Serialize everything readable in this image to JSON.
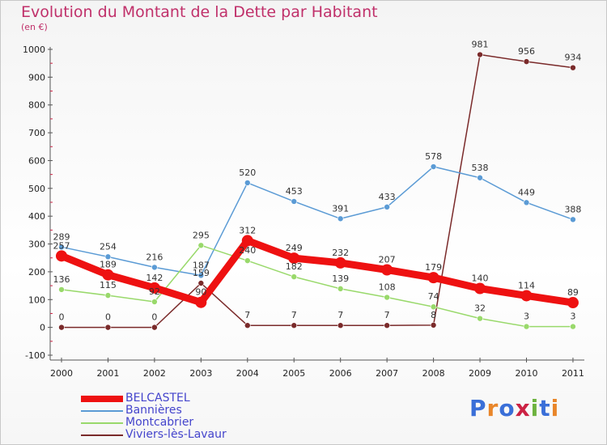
{
  "title": "Evolution du Montant de la Dette par Habitant",
  "subtitle": "(en €)",
  "logo": "Proxiti",
  "chart_data": {
    "type": "line",
    "x": [
      "2000",
      "2001",
      "2002",
      "2003",
      "2004",
      "2005",
      "2006",
      "2007",
      "2008",
      "2009",
      "2010",
      "2011"
    ],
    "ylim": [
      -100,
      1000
    ],
    "yticks": [
      -100,
      0,
      100,
      200,
      300,
      400,
      500,
      600,
      700,
      800,
      900,
      1000
    ],
    "grid": false,
    "legend_position": "bottom-left",
    "series": [
      {
        "name": "BELCASTEL",
        "color": "#ee1111",
        "values": [
          257,
          189,
          142,
          90,
          312,
          249,
          232,
          207,
          179,
          140,
          114,
          89
        ],
        "labels": [
          "257",
          "189",
          "142",
          "90",
          "312",
          "249",
          "232",
          "207",
          "179",
          "140",
          "114",
          "89"
        ]
      },
      {
        "name": "Bannières",
        "color": "#5b9bd5",
        "values": [
          289,
          254,
          216,
          187,
          520,
          453,
          391,
          433,
          578,
          538,
          449,
          388
        ],
        "labels": [
          "289",
          "254",
          "216",
          "187",
          "520",
          "453",
          "391",
          "433",
          "578",
          "538",
          "449",
          "388"
        ]
      },
      {
        "name": "Montcabrier",
        "color": "#99d96b",
        "values": [
          136,
          115,
          92,
          295,
          240,
          182,
          139,
          108,
          74,
          32,
          3,
          3
        ],
        "labels": [
          "136",
          "115",
          "92",
          "295",
          "240",
          "182",
          "139",
          "108",
          "74",
          "32",
          "3",
          "3"
        ]
      },
      {
        "name": "Viviers-lès-Lavaur",
        "color": "#7a2a2a",
        "values": [
          0,
          0,
          0,
          159,
          7,
          7,
          7,
          7,
          8,
          981,
          956,
          934
        ],
        "labels": [
          "0",
          "0",
          "0",
          "159",
          "7",
          "7",
          "7",
          "7",
          "8",
          "981",
          "956",
          "934"
        ]
      }
    ]
  }
}
